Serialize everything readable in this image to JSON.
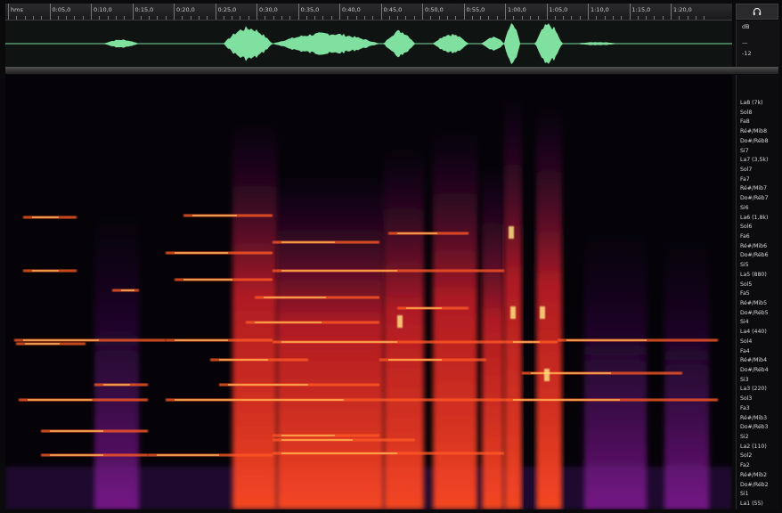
{
  "ruler": {
    "ticks": [
      "hms",
      "0:05,0",
      "0:10,0",
      "0:15,0",
      "0:20,0",
      "0:25,0",
      "0:30,0",
      "0:35,0",
      "0:40,0",
      "0:45,0",
      "0:50,0",
      "0:55,0",
      "1:00,0",
      "1:05,0",
      "1:10,0",
      "1:15,0",
      "1:20,0"
    ]
  },
  "db_scale": {
    "top": "dB",
    "mid": "—",
    "low": "-12"
  },
  "icons": {
    "headphones": "headphones-icon"
  },
  "colors": {
    "waveform": "#7fe0a0",
    "spectrogram_low": "#3a0a5a",
    "spectrogram_mid": "#d8202a",
    "spectrogram_high": "#ffd060"
  },
  "notes": [
    "La8 (7k)",
    "Sol8",
    "Fa8",
    "Ré#/Mib8",
    "Do#/Réb8",
    "Si7",
    "La7 (3,5k)",
    "Sol7",
    "Fa7",
    "Ré#/Mib7",
    "Do#/Réb7",
    "Si6",
    "La6 (1,8k)",
    "Sol6",
    "Fa6",
    "Ré#/Mib6",
    "Do#/Réb6",
    "Si5",
    "La5 (880)",
    "Sol5",
    "Fa5",
    "Ré#/Mib5",
    "Do#/Réb5",
    "Si4",
    "La4 (440)",
    "Sol4",
    "Fa4",
    "Ré#/Mib4",
    "Do#/Réb4",
    "Si3",
    "La3 (220)",
    "Sol3",
    "Fa3",
    "Ré#/Mib3",
    "Do#/Réb3",
    "Si2",
    "La2 (110)",
    "Sol2",
    "Fa2",
    "Ré#/Mib2",
    "Do#/Réb2",
    "Si1",
    "La1 (55)"
  ]
}
